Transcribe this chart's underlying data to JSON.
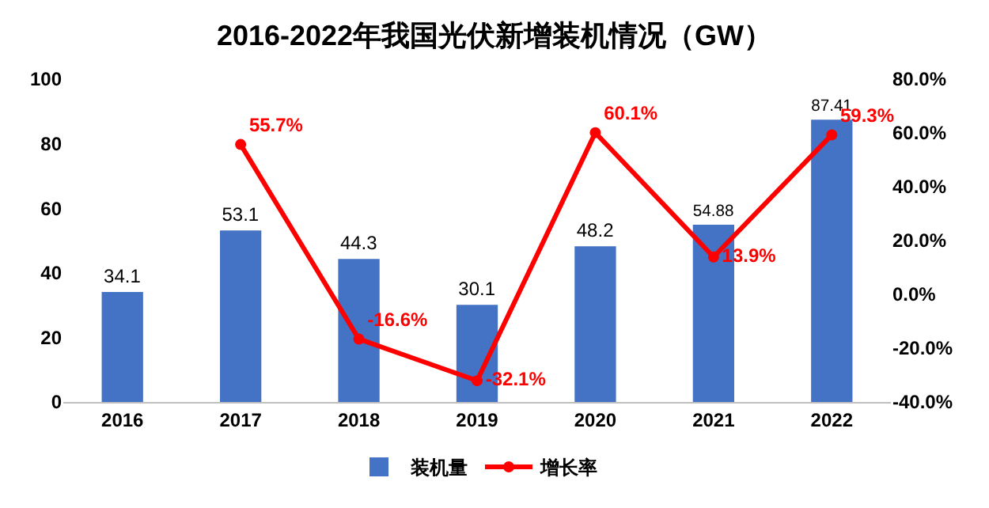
{
  "chart_data": {
    "type": "bar",
    "title": "2016-2022年我国光伏新增装机情况（GW）",
    "categories": [
      "2016",
      "2017",
      "2018",
      "2019",
      "2020",
      "2021",
      "2022"
    ],
    "series": [
      {
        "name": "装机量",
        "color": "#4472c4",
        "values": [
          34.1,
          53.1,
          44.3,
          30.1,
          48.2,
          54.88,
          87.41
        ],
        "value_labels": [
          "34.1",
          "53.1",
          "44.3",
          "30.1",
          "48.2",
          "54.88",
          "87.41"
        ]
      },
      {
        "name": "增长率",
        "type": "line",
        "axis": "y2",
        "color": "#ff0000",
        "marker": "circle",
        "values": [
          null,
          55.7,
          -16.6,
          -32.1,
          60.1,
          13.9,
          59.3
        ],
        "value_labels": [
          null,
          "55.7%",
          "-16.6%",
          "-32.1%",
          "60.1%",
          "13.9%",
          "59.3%"
        ]
      }
    ],
    "ylim": [
      0,
      100
    ],
    "yticks": [
      0,
      20,
      40,
      60,
      80,
      100
    ],
    "y2lim": [
      -40,
      80
    ],
    "y2ticks": [
      {
        "value": -40,
        "label": "-40.0%"
      },
      {
        "value": -20,
        "label": "-20.0%"
      },
      {
        "value": 0,
        "label": "0.0%"
      },
      {
        "value": 20,
        "label": "20.0%"
      },
      {
        "value": 40,
        "label": "40.0%"
      },
      {
        "value": 60,
        "label": "60.0%"
      },
      {
        "value": 80,
        "label": "80.0%"
      }
    ],
    "grid": false,
    "legend": "bottom"
  }
}
